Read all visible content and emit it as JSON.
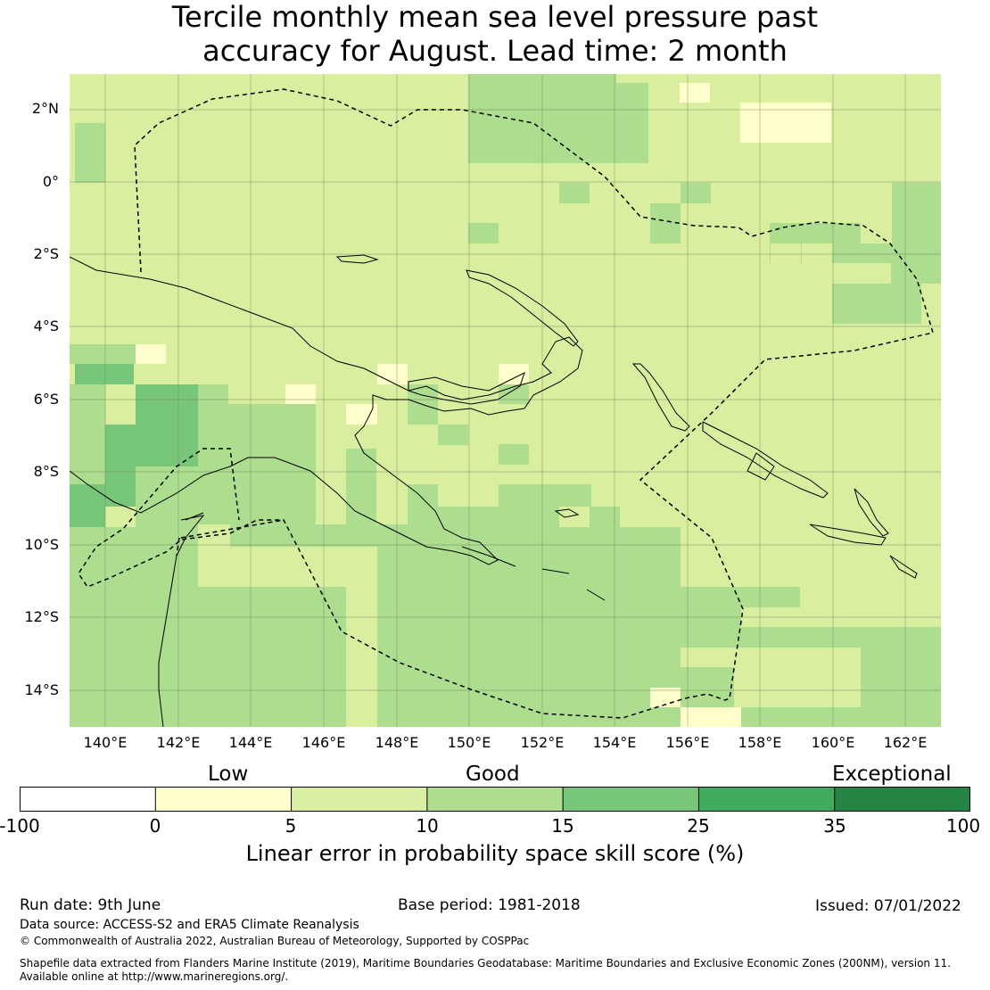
{
  "title_line1": "Tercile monthly mean sea level pressure past",
  "title_line2": "accuracy for August. Lead time: 2 month",
  "map": {
    "lat_labels": [
      "2°N",
      "0°",
      "2°S",
      "4°S",
      "6°S",
      "8°S",
      "10°S",
      "12°S",
      "14°S"
    ],
    "lon_labels": [
      "140°E",
      "142°E",
      "144°E",
      "146°E",
      "148°E",
      "150°E",
      "152°E",
      "154°E",
      "156°E",
      "158°E",
      "160°E",
      "162°E"
    ]
  },
  "legend": {
    "categories": [
      "Low",
      "Good",
      "Exceptional"
    ],
    "ticks": [
      "-100",
      "0",
      "5",
      "10",
      "15",
      "25",
      "35",
      "100"
    ],
    "colors": [
      "#ffffff",
      "#ffffcc",
      "#d9f0a3",
      "#addd8e",
      "#78c679",
      "#41ab5d",
      "#238443"
    ],
    "title": "Linear error in probability space skill score (%)"
  },
  "footer": {
    "run_date": "Run date: 9th June",
    "base_period": "Base period: 1981-2018",
    "issued": "Issued: 07/01/2022",
    "data_source": "Data source: ACCESS-S2 and ERA5 Climate Reanalysis",
    "copyright": "© Commonwealth of Australia 2022, Australian Bureau of Meteorology, Supported by COSPPac",
    "shapefile_line1": "Shapefile data extracted from Flanders Marine Institute (2019), Maritime Boundaries Geodatabase: Maritime Boundaries and Exclusive Economic Zones (200NM), version 11.",
    "shapefile_line2": "Available online at http://www.marineregions.org/."
  }
}
